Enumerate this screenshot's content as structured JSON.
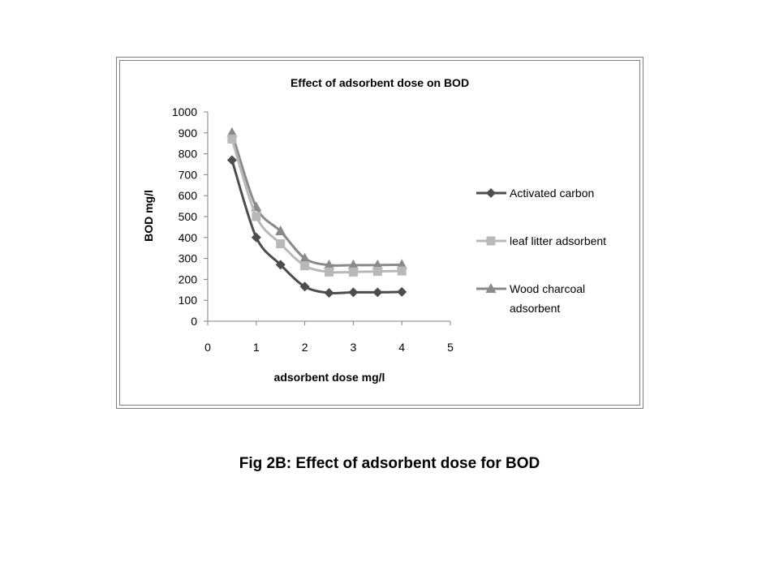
{
  "chart_data": {
    "type": "line",
    "title": "Effect of adsorbent dose on BOD",
    "xlabel": "adsorbent dose mg/l",
    "ylabel": "BOD mg/l",
    "xlim": [
      0,
      5
    ],
    "ylim": [
      0,
      1000
    ],
    "x_ticks": [
      "0",
      "1",
      "2",
      "3",
      "4",
      "5"
    ],
    "y_ticks": [
      "0",
      "100",
      "200",
      "300",
      "400",
      "500",
      "600",
      "700",
      "800",
      "900",
      "1000"
    ],
    "x": [
      0.5,
      1,
      1.5,
      2,
      2.5,
      3,
      3.5,
      4
    ],
    "grid": false,
    "legend_position": "right",
    "series": [
      {
        "name": "Activated carbon",
        "marker": "diamond",
        "color": "#4d4d4d",
        "values": [
          770,
          400,
          270,
          165,
          135,
          138,
          138,
          140
        ]
      },
      {
        "name": "leaf litter adsorbent",
        "marker": "square",
        "color": "#b8b8b8",
        "values": [
          870,
          500,
          370,
          265,
          235,
          235,
          238,
          240
        ]
      },
      {
        "name": "Wood charcoal adsorbent",
        "marker": "triangle",
        "color": "#8a8a8a",
        "values": [
          900,
          545,
          430,
          300,
          268,
          268,
          268,
          270
        ]
      }
    ]
  },
  "legend_lines": [
    [
      "Activated carbon"
    ],
    [
      "leaf litter adsorbent"
    ],
    [
      "Wood charcoal",
      "adsorbent"
    ]
  ],
  "figure_caption": "Fig 2B: Effect of adsorbent dose for BOD"
}
